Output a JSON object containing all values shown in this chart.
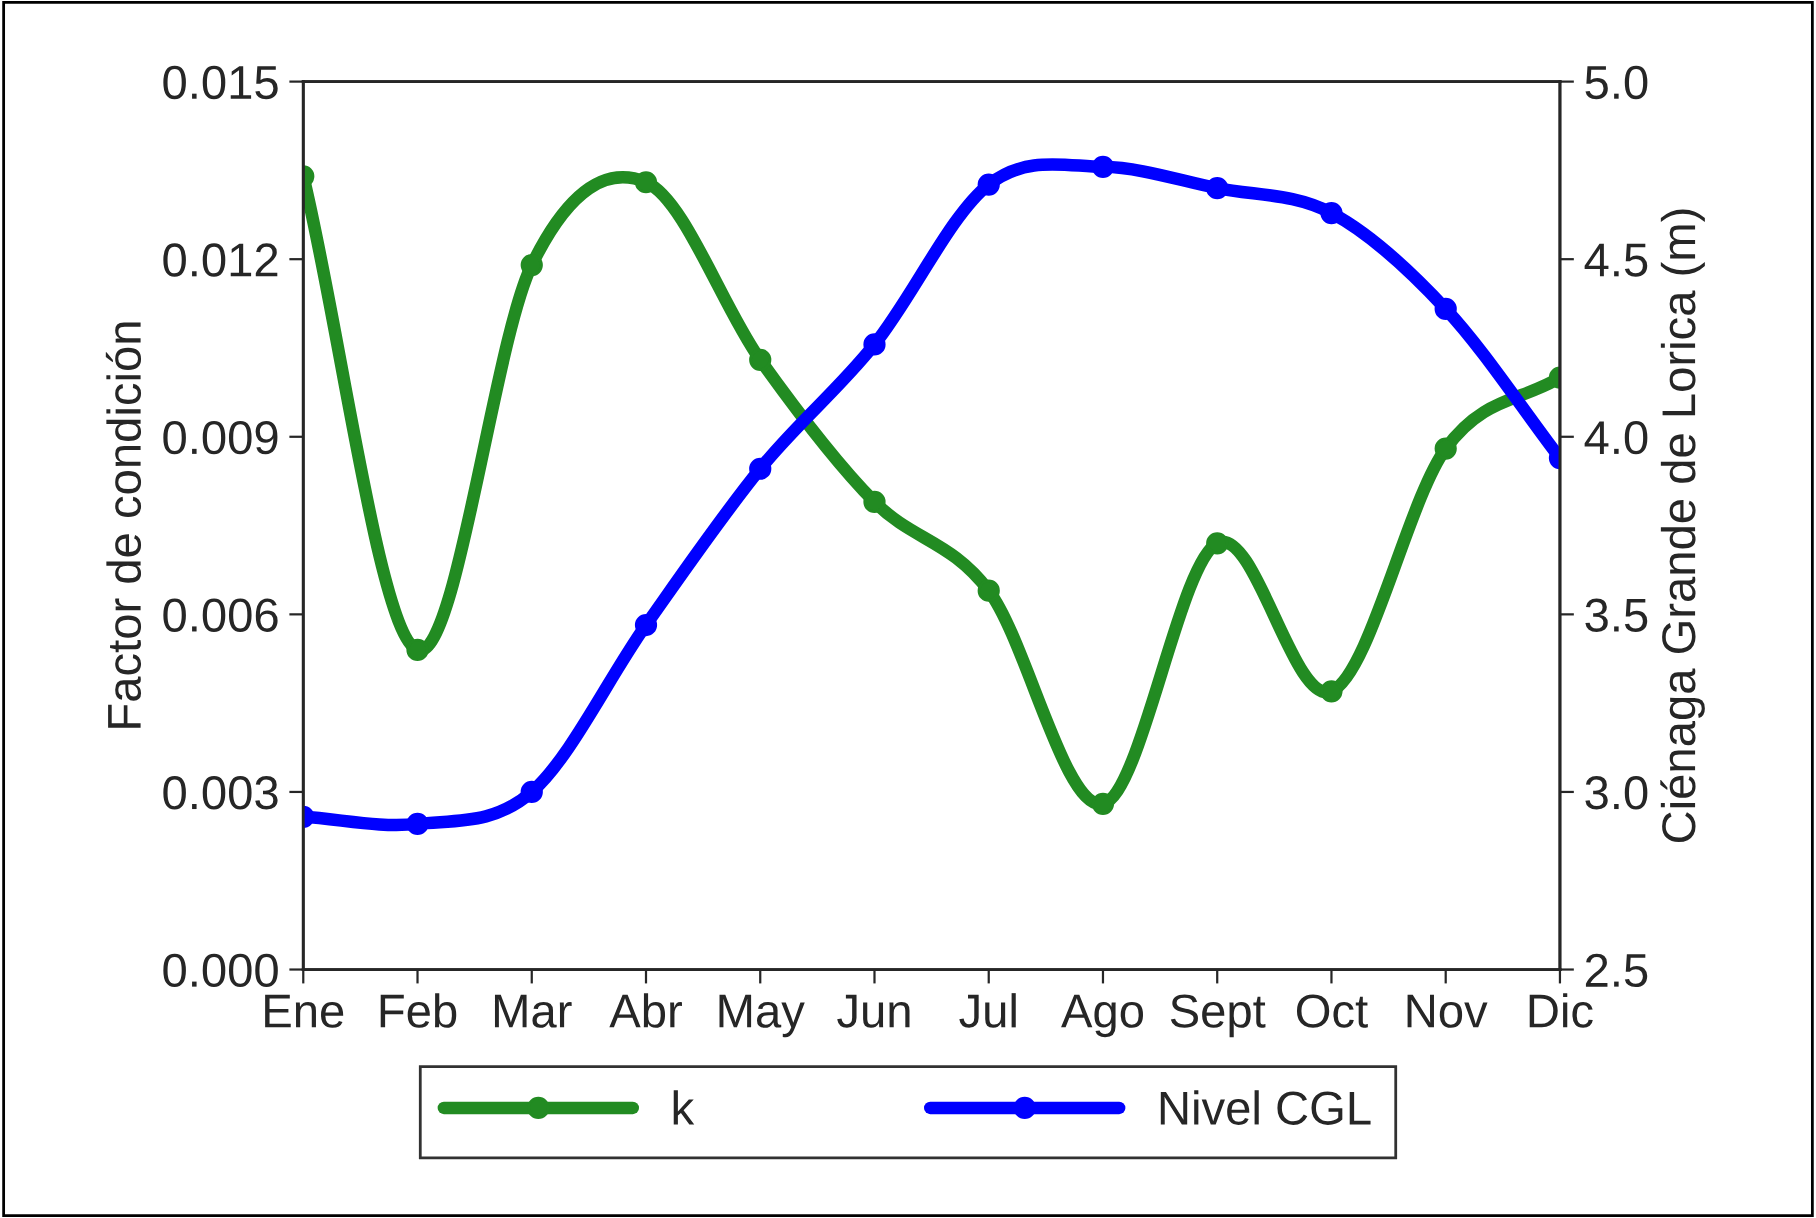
{
  "chart_data": {
    "type": "line",
    "ylabel": "Factor de condición",
    "y2label": "Ciénaga Grande de Lorica (m)",
    "categories": [
      "Ene",
      "Feb",
      "Mar",
      "Abr",
      "May",
      "Jun",
      "Jul",
      "Ago",
      "Sept",
      "Oct",
      "Nov",
      "Dic"
    ],
    "series": [
      {
        "name": "k",
        "color": "#228b22",
        "values": [
          0.0134,
          0.0054,
          0.0119,
          0.0133,
          0.0103,
          0.0079,
          0.0064,
          0.0028,
          0.0072,
          0.0047,
          0.0088,
          0.01
        ]
      },
      {
        "name": "Nivel CGL",
        "color": "#0000ff",
        "axis": "y2",
        "values": [
          2.93,
          2.91,
          3.0,
          3.47,
          3.91,
          4.26,
          4.71,
          4.76,
          4.7,
          4.63,
          4.36,
          3.94
        ]
      }
    ],
    "ylim": [
      0,
      0.015
    ],
    "yticks": [
      {
        "value": 0,
        "label": "0.000"
      },
      {
        "value": 0.003,
        "label": "0.003"
      },
      {
        "value": 0.006,
        "label": "0.006"
      },
      {
        "value": 0.009,
        "label": "0.009"
      },
      {
        "value": 0.012,
        "label": "0.012"
      },
      {
        "value": 0.015,
        "label": "0.015"
      }
    ],
    "y2lim": [
      2.5,
      5.0
    ],
    "y2ticks": [
      2.5,
      {
        "value": 3,
        "label": "3.0"
      },
      3.5,
      {
        "value": 4,
        "label": "4.0"
      },
      4.5,
      {
        "value": 5,
        "label": "5.0"
      }
    ],
    "marker": "circle",
    "line_style": "solid",
    "grid": false,
    "legend": "bottom"
  }
}
